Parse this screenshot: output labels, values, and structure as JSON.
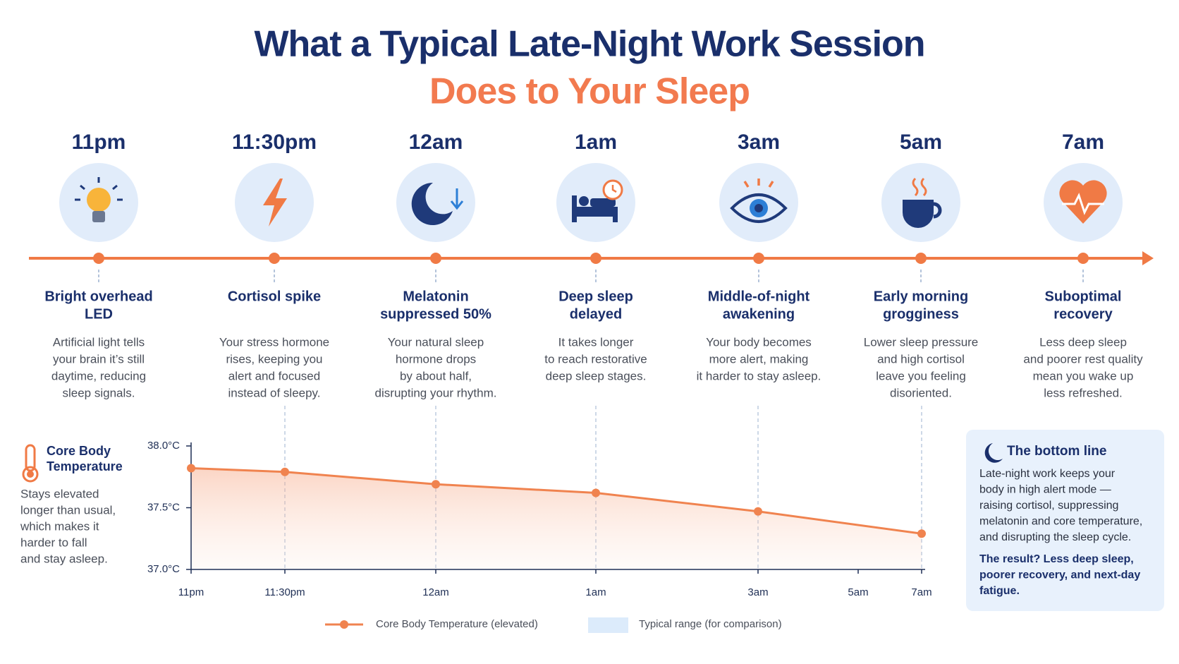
{
  "header": {
    "title": "What a Typical Late-Night Work Session",
    "subtitle": "Does to Your Sleep"
  },
  "timeline": [
    {
      "time": "11pm",
      "title": [
        "Bright overhead",
        "LED"
      ],
      "description": [
        "Artificial light tells",
        "your brain it’s still",
        "daytime, reducing",
        "sleep signals."
      ]
    },
    {
      "time": "11:30pm",
      "title": [
        "Cortisol spike"
      ],
      "description": [
        "Your stress hormone",
        "rises, keeping you",
        "alert and focused",
        "instead of sleepy."
      ]
    },
    {
      "time": "12am",
      "title": [
        "Melatonin",
        "suppressed 50%"
      ],
      "description": [
        "Your natural sleep",
        "hormone drops",
        "by about half,",
        "disrupting your rhythm."
      ]
    },
    {
      "time": "1am",
      "title": [
        "Deep sleep",
        "delayed"
      ],
      "description": [
        "It takes longer",
        "to reach restorative",
        "deep sleep stages."
      ]
    },
    {
      "time": "3am",
      "title": [
        "Middle-of-night",
        "awakening"
      ],
      "description": [
        "Your body becomes",
        "more alert, making",
        "it harder to stay asleep."
      ]
    },
    {
      "time": "5am",
      "title": [
        "Early morning",
        "grogginess"
      ],
      "description": [
        "Lower sleep pressure",
        "and high cortisol",
        "leave you feeling",
        "disoriented."
      ]
    },
    {
      "time": "7am",
      "title": [
        "Suboptimal",
        "recovery"
      ],
      "description": [
        "Less deep sleep",
        "and poorer rest quality",
        "mean you wake up",
        "less refreshed."
      ]
    }
  ],
  "sidebar": {
    "title": [
      "Core Body",
      "Temperature"
    ],
    "description": [
      "Stays elevated",
      "longer than usual,",
      "which makes it",
      "harder to fall",
      "and stay asleep."
    ]
  },
  "bottom_line": {
    "title": "The bottom line",
    "text": [
      "Late-night work keeps your",
      "body in high alert mode —",
      "raising cortisol, suppressing",
      "melatonin and core temperature,",
      "and disrupting the sleep cycle."
    ],
    "result": [
      "The result? Less deep sleep,",
      "poorer recovery, and next-day",
      "fatigue."
    ]
  },
  "chart_data": {
    "type": "line",
    "categories": [
      "11pm",
      "11:30pm",
      "12am",
      "1am",
      "3am",
      "5am",
      "7am"
    ],
    "series": [
      {
        "name": "Core Body Temperature (elevated)",
        "color": "#f0834f",
        "values": [
          37.82,
          37.79,
          37.69,
          37.62,
          37.47,
          null,
          37.29
        ]
      }
    ],
    "reference_band": {
      "name": "Typical range (for comparison)",
      "color": "#dcebfb"
    },
    "ylim": [
      37.0,
      38.0
    ],
    "yticks": [
      {
        "value": 37.0,
        "label": "37.0°C"
      },
      {
        "value": 37.5,
        "label": "37.5°C"
      },
      {
        "value": 38.0,
        "label": "38.0°C"
      }
    ]
  }
}
